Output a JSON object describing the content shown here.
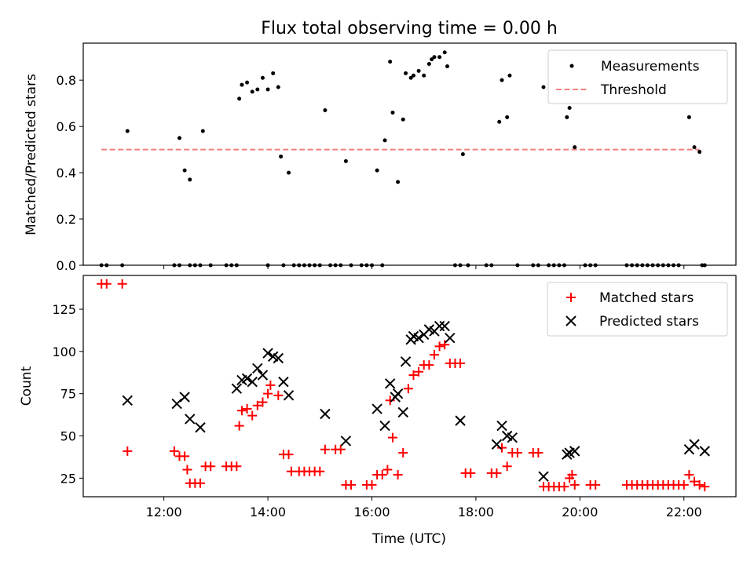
{
  "figure_title": "Flux total observing time = 0.00 h",
  "colors": {
    "measure": "#000000",
    "threshold": "#f08080",
    "matched": "#ff0000",
    "predicted": "#000000"
  },
  "chart_data": [
    {
      "type": "scatter",
      "ylabel": "Matched/Predicted stars",
      "ylim": [
        0,
        0.96
      ],
      "xlim": [
        10.45,
        23.0
      ],
      "yticks": [
        0.0,
        0.2,
        0.4,
        0.6,
        0.8
      ],
      "ytick_labels": [
        "0.0",
        "0.2",
        "0.4",
        "0.6",
        "0.8"
      ],
      "legend_position": "top-right",
      "legend": [
        "Measurements",
        "Threshold"
      ],
      "threshold": {
        "name": "Threshold",
        "y": 0.5,
        "x_range": [
          10.8,
          22.3
        ]
      },
      "series": [
        {
          "name": "Measurements",
          "points": [
            [
              10.8,
              0
            ],
            [
              10.9,
              0
            ],
            [
              11.2,
              0
            ],
            [
              11.3,
              0.58
            ],
            [
              12.2,
              0
            ],
            [
              12.3,
              0
            ],
            [
              12.3,
              0.55
            ],
            [
              12.4,
              0.41
            ],
            [
              12.5,
              0.37
            ],
            [
              12.5,
              0
            ],
            [
              12.6,
              0
            ],
            [
              12.7,
              0
            ],
            [
              12.75,
              0.58
            ],
            [
              12.9,
              0
            ],
            [
              13.2,
              0
            ],
            [
              13.3,
              0
            ],
            [
              13.4,
              0
            ],
            [
              13.45,
              0.72
            ],
            [
              13.5,
              0.78
            ],
            [
              13.6,
              0.79
            ],
            [
              13.7,
              0.75
            ],
            [
              13.8,
              0.76
            ],
            [
              13.9,
              0.81
            ],
            [
              14.0,
              0
            ],
            [
              14.0,
              0.76
            ],
            [
              14.1,
              0.83
            ],
            [
              14.2,
              0.77
            ],
            [
              14.25,
              0.47
            ],
            [
              14.3,
              0
            ],
            [
              14.4,
              0.4
            ],
            [
              14.5,
              0
            ],
            [
              14.6,
              0
            ],
            [
              14.7,
              0
            ],
            [
              14.8,
              0
            ],
            [
              14.9,
              0
            ],
            [
              15.0,
              0
            ],
            [
              15.1,
              0.67
            ],
            [
              15.2,
              0
            ],
            [
              15.3,
              0
            ],
            [
              15.4,
              0
            ],
            [
              15.5,
              0.45
            ],
            [
              15.6,
              0
            ],
            [
              15.8,
              0
            ],
            [
              15.9,
              0
            ],
            [
              16.0,
              0
            ],
            [
              16.1,
              0.41
            ],
            [
              16.2,
              0
            ],
            [
              16.25,
              0.54
            ],
            [
              16.35,
              0.88
            ],
            [
              16.4,
              0.66
            ],
            [
              16.5,
              0.36
            ],
            [
              16.6,
              0.63
            ],
            [
              16.65,
              0.83
            ],
            [
              16.75,
              0.81
            ],
            [
              16.8,
              0.82
            ],
            [
              16.9,
              0.84
            ],
            [
              17.0,
              0.82
            ],
            [
              17.1,
              0.87
            ],
            [
              17.15,
              0.89
            ],
            [
              17.2,
              0.9
            ],
            [
              17.3,
              0.9
            ],
            [
              17.4,
              0.92
            ],
            [
              17.45,
              0.86
            ],
            [
              17.6,
              0
            ],
            [
              17.7,
              0
            ],
            [
              17.75,
              0.48
            ],
            [
              17.85,
              0
            ],
            [
              18.2,
              0
            ],
            [
              18.3,
              0
            ],
            [
              18.45,
              0.62
            ],
            [
              18.5,
              0.8
            ],
            [
              18.6,
              0.64
            ],
            [
              18.65,
              0.82
            ],
            [
              18.8,
              0
            ],
            [
              19.1,
              0
            ],
            [
              19.2,
              0
            ],
            [
              19.3,
              0.77
            ],
            [
              19.4,
              0
            ],
            [
              19.5,
              0
            ],
            [
              19.6,
              0
            ],
            [
              19.7,
              0
            ],
            [
              19.75,
              0.64
            ],
            [
              19.8,
              0.68
            ],
            [
              19.9,
              0.51
            ],
            [
              20.1,
              0
            ],
            [
              20.2,
              0
            ],
            [
              20.3,
              0
            ],
            [
              20.9,
              0
            ],
            [
              21.0,
              0
            ],
            [
              21.1,
              0
            ],
            [
              21.2,
              0
            ],
            [
              21.3,
              0
            ],
            [
              21.4,
              0
            ],
            [
              21.5,
              0
            ],
            [
              21.6,
              0
            ],
            [
              21.7,
              0
            ],
            [
              21.8,
              0
            ],
            [
              21.9,
              0
            ],
            [
              22.1,
              0.64
            ],
            [
              22.2,
              0.51
            ],
            [
              22.3,
              0.49
            ],
            [
              22.35,
              0
            ],
            [
              22.4,
              0
            ]
          ]
        }
      ]
    },
    {
      "type": "scatter",
      "xlabel": "Time (UTC)",
      "ylabel": "Count",
      "ylim": [
        14,
        145
      ],
      "xlim": [
        10.45,
        23.0
      ],
      "yticks": [
        25,
        50,
        75,
        100,
        125
      ],
      "ytick_labels": [
        "25",
        "50",
        "75",
        "100",
        "125"
      ],
      "xticks": [
        12,
        14,
        16,
        18,
        20,
        22
      ],
      "xtick_labels": [
        "12:00",
        "14:00",
        "16:00",
        "18:00",
        "20:00",
        "22:00"
      ],
      "legend_position": "top-right",
      "legend": [
        "Matched stars",
        "Predicted stars"
      ],
      "series": [
        {
          "name": "Matched stars",
          "marker": "+",
          "points": [
            [
              10.8,
              140
            ],
            [
              10.9,
              140
            ],
            [
              11.2,
              140
            ],
            [
              11.3,
              41
            ],
            [
              12.2,
              41
            ],
            [
              12.3,
              38
            ],
            [
              12.4,
              38
            ],
            [
              12.45,
              30
            ],
            [
              12.5,
              22
            ],
            [
              12.6,
              22
            ],
            [
              12.7,
              22
            ],
            [
              12.8,
              32
            ],
            [
              12.9,
              32
            ],
            [
              13.2,
              32
            ],
            [
              13.3,
              32
            ],
            [
              13.4,
              32
            ],
            [
              13.45,
              56
            ],
            [
              13.5,
              65
            ],
            [
              13.6,
              66
            ],
            [
              13.7,
              62
            ],
            [
              13.8,
              68
            ],
            [
              13.9,
              70
            ],
            [
              14.0,
              75
            ],
            [
              14.05,
              80
            ],
            [
              14.2,
              74
            ],
            [
              14.3,
              39
            ],
            [
              14.4,
              39
            ],
            [
              14.45,
              29
            ],
            [
              14.6,
              29
            ],
            [
              14.7,
              29
            ],
            [
              14.8,
              29
            ],
            [
              14.9,
              29
            ],
            [
              15.0,
              29
            ],
            [
              15.1,
              42
            ],
            [
              15.3,
              42
            ],
            [
              15.4,
              42
            ],
            [
              15.5,
              21
            ],
            [
              15.6,
              21
            ],
            [
              15.9,
              21
            ],
            [
              16.0,
              21
            ],
            [
              16.1,
              27
            ],
            [
              16.2,
              27
            ],
            [
              16.3,
              30
            ],
            [
              16.35,
              71
            ],
            [
              16.4,
              49
            ],
            [
              16.5,
              27
            ],
            [
              16.6,
              40
            ],
            [
              16.7,
              78
            ],
            [
              16.8,
              86
            ],
            [
              16.9,
              88
            ],
            [
              17.0,
              92
            ],
            [
              17.1,
              92
            ],
            [
              17.2,
              98
            ],
            [
              17.3,
              103
            ],
            [
              17.4,
              104
            ],
            [
              17.5,
              93
            ],
            [
              17.6,
              93
            ],
            [
              17.7,
              93
            ],
            [
              17.8,
              28
            ],
            [
              17.9,
              28
            ],
            [
              18.3,
              28
            ],
            [
              18.4,
              28
            ],
            [
              18.5,
              43
            ],
            [
              18.6,
              32
            ],
            [
              18.7,
              40
            ],
            [
              18.8,
              40
            ],
            [
              19.1,
              40
            ],
            [
              19.2,
              40
            ],
            [
              19.3,
              20
            ],
            [
              19.4,
              20
            ],
            [
              19.5,
              20
            ],
            [
              19.6,
              20
            ],
            [
              19.7,
              20
            ],
            [
              19.8,
              25
            ],
            [
              19.85,
              27
            ],
            [
              19.9,
              21
            ],
            [
              20.2,
              21
            ],
            [
              20.3,
              21
            ],
            [
              20.9,
              21
            ],
            [
              21.0,
              21
            ],
            [
              21.1,
              21
            ],
            [
              21.2,
              21
            ],
            [
              21.3,
              21
            ],
            [
              21.4,
              21
            ],
            [
              21.5,
              21
            ],
            [
              21.6,
              21
            ],
            [
              21.7,
              21
            ],
            [
              21.8,
              21
            ],
            [
              21.9,
              21
            ],
            [
              22.0,
              21
            ],
            [
              22.1,
              27
            ],
            [
              22.2,
              23
            ],
            [
              22.3,
              21
            ],
            [
              22.4,
              20
            ]
          ]
        },
        {
          "name": "Predicted stars",
          "marker": "x",
          "points": [
            [
              11.3,
              71
            ],
            [
              12.25,
              69
            ],
            [
              12.4,
              73
            ],
            [
              12.5,
              60
            ],
            [
              12.7,
              55
            ],
            [
              13.4,
              78
            ],
            [
              13.5,
              83
            ],
            [
              13.6,
              84
            ],
            [
              13.7,
              82
            ],
            [
              13.8,
              90
            ],
            [
              13.9,
              86
            ],
            [
              14.0,
              99
            ],
            [
              14.1,
              97
            ],
            [
              14.2,
              96
            ],
            [
              14.3,
              82
            ],
            [
              14.4,
              74
            ],
            [
              15.1,
              63
            ],
            [
              15.5,
              47
            ],
            [
              16.1,
              66
            ],
            [
              16.25,
              56
            ],
            [
              16.35,
              81
            ],
            [
              16.45,
              73
            ],
            [
              16.5,
              75
            ],
            [
              16.6,
              64
            ],
            [
              16.65,
              94
            ],
            [
              16.75,
              107
            ],
            [
              16.8,
              109
            ],
            [
              16.9,
              108
            ],
            [
              17.0,
              110
            ],
            [
              17.1,
              113
            ],
            [
              17.2,
              112
            ],
            [
              17.3,
              115
            ],
            [
              17.4,
              115
            ],
            [
              17.5,
              108
            ],
            [
              17.7,
              59
            ],
            [
              18.4,
              45
            ],
            [
              18.5,
              56
            ],
            [
              18.6,
              50
            ],
            [
              18.7,
              49
            ],
            [
              19.3,
              26
            ],
            [
              19.75,
              39
            ],
            [
              19.8,
              40
            ],
            [
              19.9,
              41
            ],
            [
              22.1,
              42
            ],
            [
              22.2,
              45
            ],
            [
              22.4,
              41
            ]
          ]
        }
      ]
    }
  ]
}
